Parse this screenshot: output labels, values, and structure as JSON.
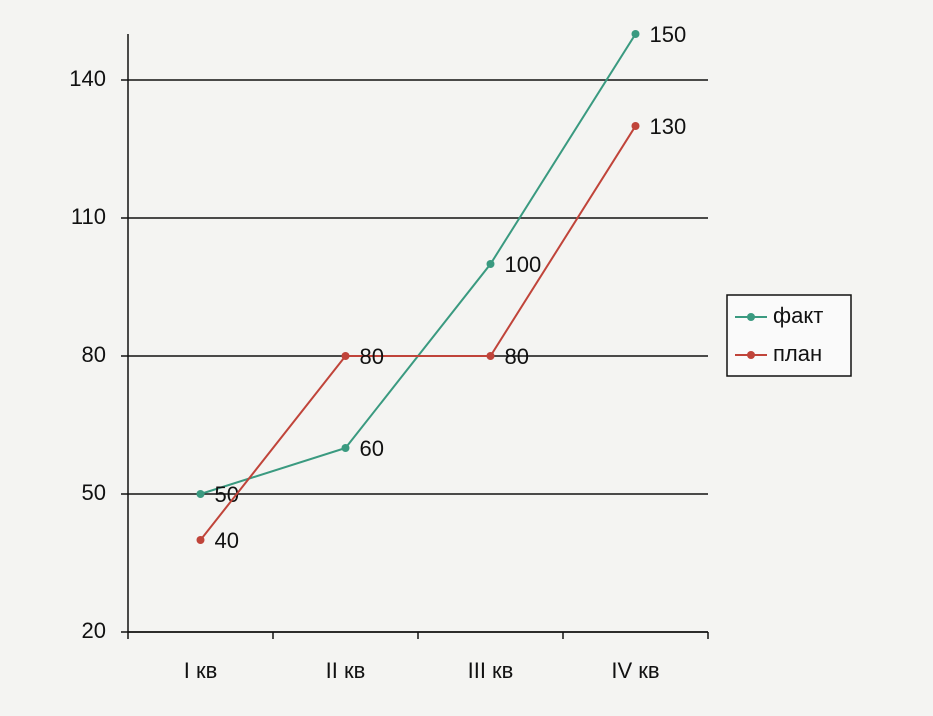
{
  "chart_data": {
    "type": "line",
    "categories": [
      "I кв",
      "II кв",
      "III кв",
      "IV кв"
    ],
    "series": [
      {
        "name": "факт",
        "color": "#3a9a80",
        "values": [
          50,
          60,
          100,
          150
        ]
      },
      {
        "name": "план",
        "color": "#c0443a",
        "values": [
          40,
          80,
          80,
          130
        ]
      }
    ],
    "ylim": [
      20,
      150
    ],
    "yticks": [
      20,
      50,
      80,
      110,
      140
    ],
    "grid": true,
    "legend": "right"
  }
}
